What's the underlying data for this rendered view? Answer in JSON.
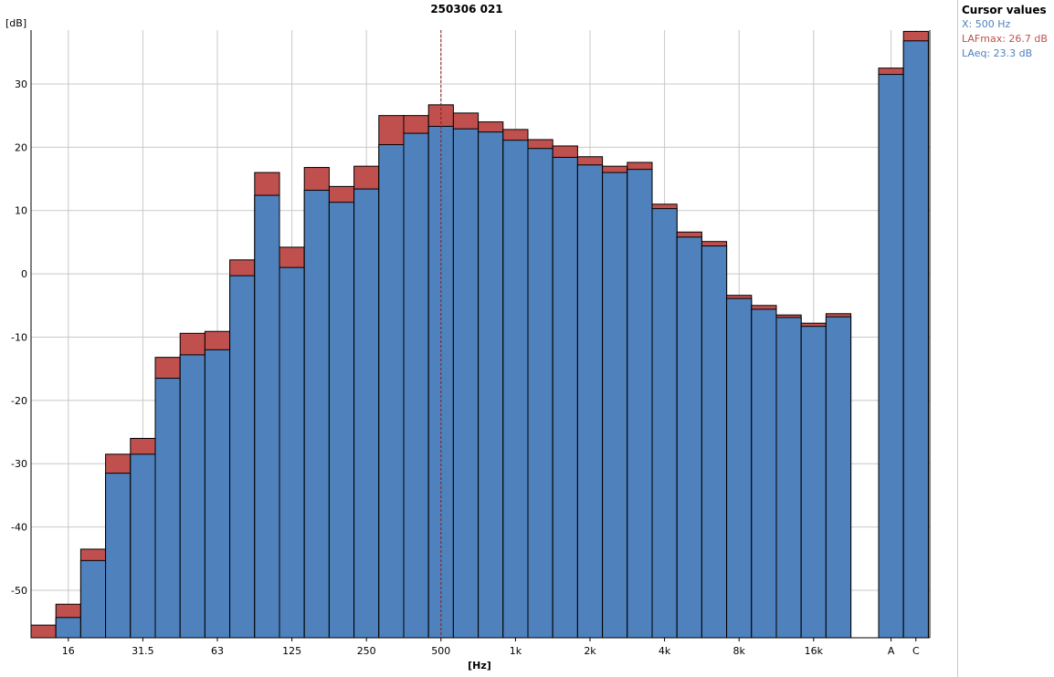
{
  "chart_data": {
    "type": "bar",
    "title": "250306 021",
    "ylabel": "[dB]",
    "xlabel": "[Hz]",
    "ylim": [
      -57.5,
      38.5
    ],
    "yticks": [
      -50,
      -40,
      -30,
      -20,
      -10,
      0,
      10,
      20,
      30
    ],
    "grid": true,
    "bands": [
      "12.5",
      "16",
      "20",
      "25",
      "31.5",
      "40",
      "50",
      "63",
      "80",
      "100",
      "125",
      "160",
      "200",
      "250",
      "315",
      "400",
      "500",
      "630",
      "800",
      "1k",
      "1.25k",
      "1.6k",
      "2k",
      "2.5k",
      "3.15k",
      "4k",
      "5k",
      "6.3k",
      "8k",
      "10k",
      "12.5k",
      "16k",
      "20k",
      "A",
      "C"
    ],
    "x_tick_labels": [
      "16",
      "31.5",
      "63",
      "125",
      "250",
      "500",
      "1k",
      "2k",
      "4k",
      "8k",
      "16k",
      "A",
      "C"
    ],
    "series": [
      {
        "name": "LAFmax",
        "color": "#c0504d",
        "values": [
          -55.5,
          -52.2,
          -43.5,
          -28.5,
          -26.0,
          -13.2,
          -9.4,
          -9.1,
          2.2,
          16.0,
          4.2,
          16.8,
          13.8,
          17.0,
          25.0,
          25.0,
          26.7,
          25.4,
          24.0,
          22.8,
          21.2,
          20.2,
          18.5,
          17.0,
          17.6,
          11.0,
          6.6,
          5.1,
          -3.4,
          -5.0,
          -6.5,
          -7.8,
          -6.3,
          32.5,
          38.3
        ]
      },
      {
        "name": "LAeq",
        "color": "#4f81bd",
        "values": [
          null,
          -54.3,
          -45.3,
          -31.5,
          -28.5,
          -16.5,
          -12.8,
          -12.0,
          -0.3,
          12.4,
          1.0,
          13.2,
          11.3,
          13.4,
          20.4,
          22.2,
          23.3,
          22.9,
          22.4,
          21.1,
          19.8,
          18.4,
          17.2,
          16.0,
          16.5,
          10.3,
          5.8,
          4.4,
          -3.9,
          -5.6,
          -6.9,
          -8.3,
          -6.8,
          31.5,
          36.8
        ]
      }
    ],
    "cursor": {
      "band": "500"
    }
  },
  "cursor_panel": {
    "title": "Cursor values",
    "rows": [
      {
        "text": "X: 500 Hz",
        "color": "#4f81bd"
      },
      {
        "text": "LAFmax: 26.7 dB",
        "color": "#c0504d"
      },
      {
        "text": "LAeq: 23.3 dB",
        "color": "#4f81bd"
      }
    ]
  }
}
